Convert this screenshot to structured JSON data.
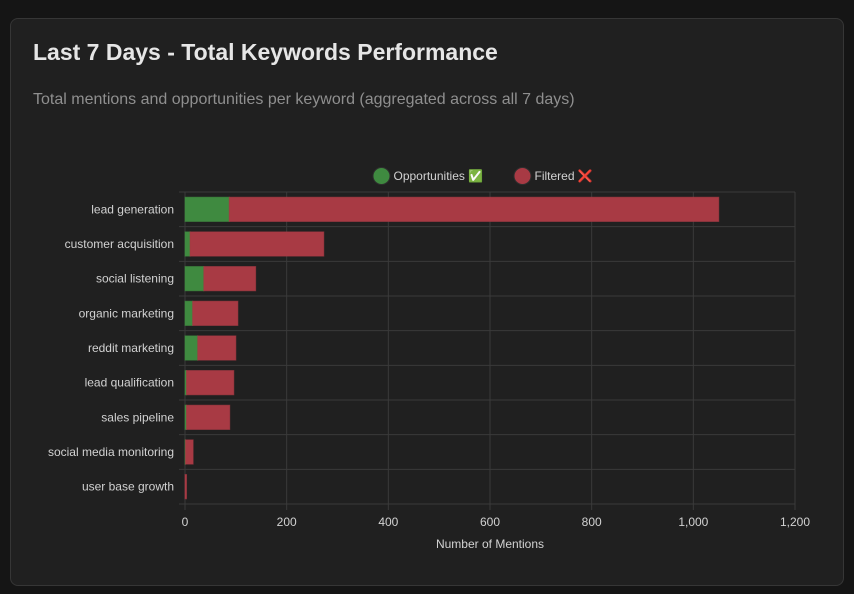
{
  "header": {
    "title": "Last 7 Days - Total Keywords Performance",
    "subtitle": "Total mentions and opportunities per keyword (aggregated across all 7 days)"
  },
  "chart_data": {
    "type": "bar",
    "orientation": "horizontal",
    "stacked": true,
    "categories": [
      "lead generation",
      "customer acquisition",
      "social listening",
      "organic marketing",
      "reddit marketing",
      "lead qualification",
      "sales pipeline",
      "social media monitoring",
      "user base growth"
    ],
    "series": [
      {
        "name": "Opportunities ✅",
        "color": "#3f8a40",
        "values": [
          87,
          10,
          37,
          15,
          25,
          3,
          3,
          1,
          0
        ]
      },
      {
        "name": "Filtered ❌",
        "color": "#a83a44",
        "values": [
          963,
          263,
          102,
          89,
          75,
          93,
          85,
          15,
          3
        ]
      }
    ],
    "xlabel": "Number of Mentions",
    "ylabel": "",
    "xlim": [
      0,
      1200
    ],
    "xticks": [
      "0",
      "200",
      "400",
      "600",
      "800",
      "1,000",
      "1,200"
    ],
    "grid": true,
    "legend_position": "top-center"
  }
}
